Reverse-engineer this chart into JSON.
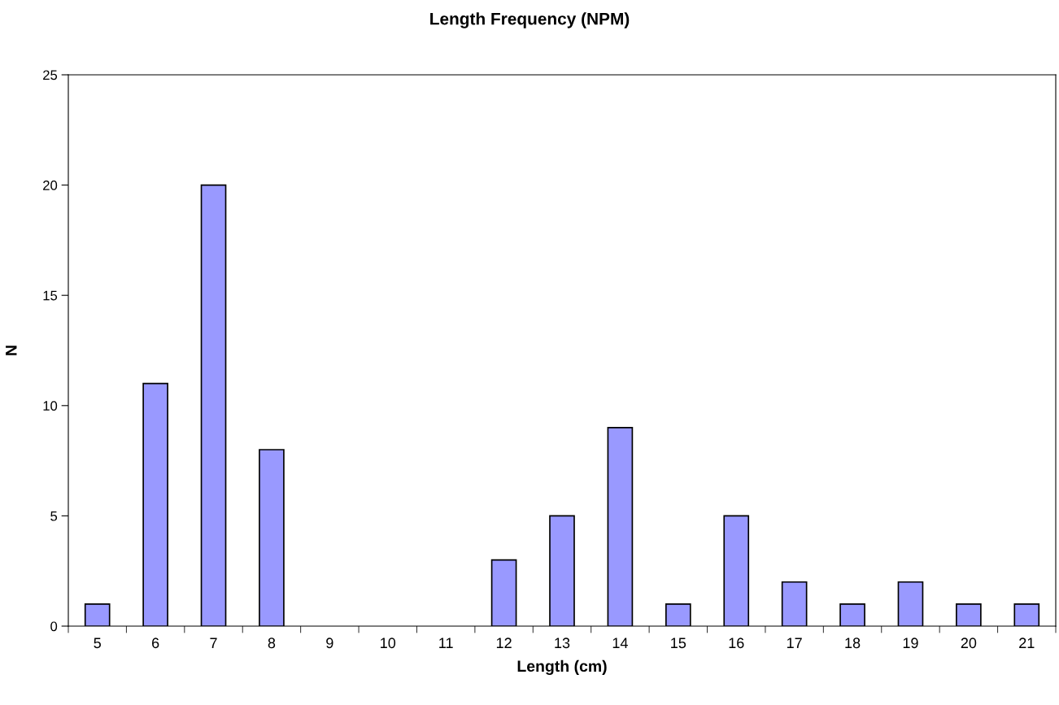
{
  "chart_data": {
    "type": "bar",
    "title": "Length Frequency (NPM)",
    "xlabel": "Length (cm)",
    "ylabel": "N",
    "categories": [
      "5",
      "6",
      "7",
      "8",
      "9",
      "10",
      "11",
      "12",
      "13",
      "14",
      "15",
      "16",
      "17",
      "18",
      "19",
      "20",
      "21"
    ],
    "values": [
      1,
      11,
      20,
      8,
      0,
      0,
      0,
      3,
      5,
      9,
      1,
      5,
      2,
      1,
      2,
      1,
      1
    ],
    "color": "#9999ff",
    "ylim": [
      0,
      25
    ],
    "yticks": [
      0,
      5,
      10,
      15,
      20,
      25
    ],
    "grid": false,
    "legend": false
  }
}
